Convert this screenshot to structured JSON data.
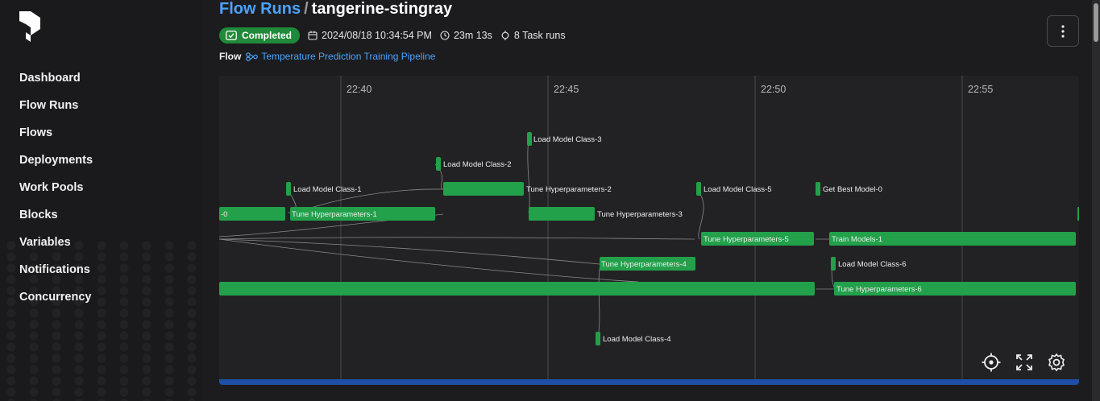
{
  "sidebar": {
    "items": [
      {
        "label": "Dashboard"
      },
      {
        "label": "Flow Runs"
      },
      {
        "label": "Flows"
      },
      {
        "label": "Deployments"
      },
      {
        "label": "Work Pools"
      },
      {
        "label": "Blocks"
      },
      {
        "label": "Variables"
      },
      {
        "label": "Notifications"
      },
      {
        "label": "Concurrency"
      }
    ]
  },
  "header": {
    "breadcrumb_root": "Flow Runs",
    "separator": "/",
    "run_name": "tangerine-stingray",
    "status": "Completed",
    "start_time": "2024/08/18 10:34:54 PM",
    "duration": "23m 13s",
    "task_runs": "8 Task runs",
    "flow_label": "Flow",
    "flow_name": "Temperature Prediction Training Pipeline"
  },
  "graph": {
    "time_ticks": [
      "22:40",
      "22:45",
      "22:50",
      "22:55"
    ],
    "nodes": [
      {
        "label": "Load Model Class-3"
      },
      {
        "label": "Load Model Class-2"
      },
      {
        "label": "Load Model Class-1"
      },
      {
        "label": "Tune Hyperparameters-2"
      },
      {
        "label": "Load Model Class-5"
      },
      {
        "label": "Get Best Model-0"
      },
      {
        "label": "-0"
      },
      {
        "label": "Tune Hyperparameters-1"
      },
      {
        "label": "Tune Hyperparameters-3"
      },
      {
        "label": "Tune Hyperparameters-5"
      },
      {
        "label": "Train Models-1"
      },
      {
        "label": "Tune Hyperparameters-4"
      },
      {
        "label": "Load Model Class-6"
      },
      {
        "label": "Tune Hyperparameters-6"
      },
      {
        "label": "Load Model Class-4"
      }
    ],
    "colors": {
      "node": "#22a04a",
      "progress": "#1e4fa8",
      "accent": "#4aa3ff"
    },
    "controls": [
      "crosshair-icon",
      "fullscreen-icon",
      "gear-icon"
    ]
  }
}
